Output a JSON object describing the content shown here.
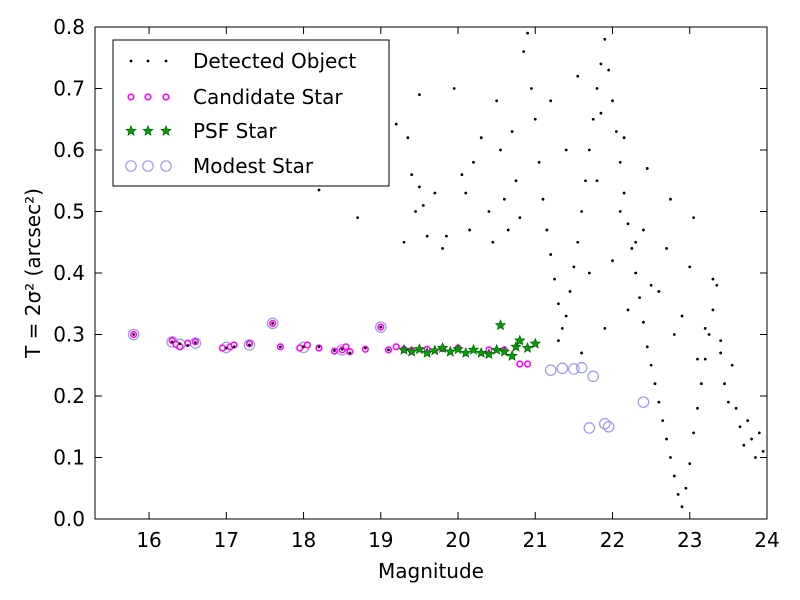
{
  "chart_data": {
    "type": "scatter",
    "xlabel": "Magnitude",
    "ylabel": "T = 2σ² (arcsec²)",
    "xlim": [
      15.3,
      24.0
    ],
    "ylim": [
      0.0,
      0.8
    ],
    "x_ticks": [
      "16",
      "17",
      "18",
      "19",
      "20",
      "21",
      "22",
      "23",
      "24"
    ],
    "y_ticks": [
      "0.0",
      "0.1",
      "0.2",
      "0.3",
      "0.4",
      "0.5",
      "0.6",
      "0.7",
      "0.8"
    ],
    "grid": false,
    "legend_position": "top-left",
    "series": [
      {
        "name": "Detected Object",
        "marker": "dot",
        "color": "#000000",
        "points": [
          [
            15.8,
            0.3
          ],
          [
            16.3,
            0.288
          ],
          [
            16.4,
            0.285
          ],
          [
            16.5,
            0.282
          ],
          [
            16.6,
            0.287
          ],
          [
            17.0,
            0.278
          ],
          [
            17.1,
            0.28
          ],
          [
            17.3,
            0.283
          ],
          [
            17.6,
            0.318
          ],
          [
            17.7,
            0.28
          ],
          [
            18.0,
            0.28
          ],
          [
            18.2,
            0.28
          ],
          [
            18.4,
            0.274
          ],
          [
            18.5,
            0.276
          ],
          [
            18.6,
            0.27
          ],
          [
            18.8,
            0.278
          ],
          [
            19.0,
            0.312
          ],
          [
            19.1,
            0.275
          ],
          [
            19.3,
            0.276
          ],
          [
            19.4,
            0.274
          ],
          [
            18.2,
            0.535
          ],
          [
            18.7,
            0.49
          ],
          [
            19.2,
            0.642
          ],
          [
            19.35,
            0.62
          ],
          [
            19.5,
            0.69
          ],
          [
            19.6,
            0.46
          ],
          [
            19.7,
            0.53
          ],
          [
            19.8,
            0.44
          ],
          [
            19.85,
            0.46
          ],
          [
            19.95,
            0.7
          ],
          [
            19.5,
            0.54
          ],
          [
            19.55,
            0.51
          ],
          [
            19.45,
            0.5
          ],
          [
            19.4,
            0.56
          ],
          [
            19.3,
            0.45
          ],
          [
            20.05,
            0.56
          ],
          [
            20.1,
            0.53
          ],
          [
            20.15,
            0.47
          ],
          [
            20.2,
            0.58
          ],
          [
            20.3,
            0.62
          ],
          [
            20.4,
            0.5
          ],
          [
            20.45,
            0.45
          ],
          [
            20.5,
            0.68
          ],
          [
            20.55,
            0.6
          ],
          [
            20.6,
            0.52
          ],
          [
            20.65,
            0.47
          ],
          [
            20.7,
            0.63
          ],
          [
            20.75,
            0.55
          ],
          [
            20.8,
            0.49
          ],
          [
            20.85,
            0.76
          ],
          [
            20.9,
            0.79
          ],
          [
            20.95,
            0.7
          ],
          [
            21.0,
            0.65
          ],
          [
            21.05,
            0.58
          ],
          [
            21.1,
            0.52
          ],
          [
            21.15,
            0.47
          ],
          [
            21.2,
            0.43
          ],
          [
            21.25,
            0.39
          ],
          [
            21.3,
            0.35
          ],
          [
            21.35,
            0.31
          ],
          [
            21.4,
            0.33
          ],
          [
            21.45,
            0.37
          ],
          [
            21.5,
            0.41
          ],
          [
            21.55,
            0.45
          ],
          [
            21.6,
            0.5
          ],
          [
            21.65,
            0.55
          ],
          [
            21.7,
            0.6
          ],
          [
            21.75,
            0.65
          ],
          [
            21.8,
            0.7
          ],
          [
            21.85,
            0.74
          ],
          [
            21.9,
            0.78
          ],
          [
            21.95,
            0.73
          ],
          [
            22.0,
            0.68
          ],
          [
            22.05,
            0.63
          ],
          [
            22.1,
            0.58
          ],
          [
            22.15,
            0.53
          ],
          [
            22.2,
            0.48
          ],
          [
            22.25,
            0.44
          ],
          [
            22.3,
            0.4
          ],
          [
            22.35,
            0.36
          ],
          [
            22.4,
            0.32
          ],
          [
            22.45,
            0.28
          ],
          [
            22.5,
            0.25
          ],
          [
            22.55,
            0.22
          ],
          [
            22.6,
            0.19
          ],
          [
            22.65,
            0.16
          ],
          [
            22.7,
            0.13
          ],
          [
            22.75,
            0.1
          ],
          [
            22.8,
            0.07
          ],
          [
            22.85,
            0.04
          ],
          [
            22.9,
            0.02
          ],
          [
            22.95,
            0.05
          ],
          [
            23.0,
            0.09
          ],
          [
            23.05,
            0.14
          ],
          [
            23.1,
            0.18
          ],
          [
            23.15,
            0.22
          ],
          [
            23.2,
            0.26
          ],
          [
            23.25,
            0.3
          ],
          [
            23.3,
            0.34
          ],
          [
            23.35,
            0.38
          ],
          [
            23.4,
            0.27
          ],
          [
            23.45,
            0.22
          ],
          [
            23.5,
            0.19
          ],
          [
            23.55,
            0.25
          ],
          [
            23.6,
            0.18
          ],
          [
            23.65,
            0.15
          ],
          [
            23.7,
            0.12
          ],
          [
            23.75,
            0.16
          ],
          [
            23.8,
            0.13
          ],
          [
            23.85,
            0.1
          ],
          [
            23.9,
            0.14
          ],
          [
            23.95,
            0.11
          ],
          [
            21.3,
            0.29
          ],
          [
            21.6,
            0.27
          ],
          [
            21.9,
            0.31
          ],
          [
            22.2,
            0.34
          ],
          [
            22.5,
            0.38
          ],
          [
            22.8,
            0.3
          ],
          [
            23.1,
            0.26
          ],
          [
            23.4,
            0.29
          ],
          [
            21.7,
            0.4
          ],
          [
            22.0,
            0.42
          ],
          [
            22.3,
            0.45
          ],
          [
            22.6,
            0.37
          ],
          [
            22.9,
            0.33
          ],
          [
            23.2,
            0.31
          ],
          [
            21.4,
            0.6
          ],
          [
            21.8,
            0.55
          ],
          [
            22.1,
            0.5
          ],
          [
            22.4,
            0.47
          ],
          [
            22.7,
            0.44
          ],
          [
            23.0,
            0.41
          ],
          [
            23.3,
            0.39
          ],
          [
            21.2,
            0.68
          ],
          [
            21.55,
            0.72
          ],
          [
            21.85,
            0.66
          ],
          [
            22.15,
            0.62
          ],
          [
            22.45,
            0.57
          ],
          [
            22.75,
            0.52
          ],
          [
            23.05,
            0.49
          ]
        ]
      },
      {
        "name": "Candidate Star",
        "marker": "circle",
        "color": "#ff00ff",
        "points": [
          [
            15.8,
            0.3
          ],
          [
            16.3,
            0.29
          ],
          [
            16.35,
            0.284
          ],
          [
            16.4,
            0.28
          ],
          [
            16.5,
            0.286
          ],
          [
            16.6,
            0.288
          ],
          [
            16.95,
            0.278
          ],
          [
            17.05,
            0.28
          ],
          [
            17.1,
            0.283
          ],
          [
            17.3,
            0.285
          ],
          [
            17.6,
            0.318
          ],
          [
            17.7,
            0.28
          ],
          [
            17.95,
            0.278
          ],
          [
            18.05,
            0.283
          ],
          [
            18.2,
            0.278
          ],
          [
            18.4,
            0.273
          ],
          [
            18.5,
            0.275
          ],
          [
            18.55,
            0.28
          ],
          [
            18.6,
            0.272
          ],
          [
            18.8,
            0.276
          ],
          [
            19.0,
            0.312
          ],
          [
            19.1,
            0.275
          ],
          [
            19.2,
            0.28
          ],
          [
            19.3,
            0.276
          ],
          [
            19.4,
            0.274
          ],
          [
            19.6,
            0.276
          ],
          [
            19.8,
            0.277
          ],
          [
            20.0,
            0.278
          ],
          [
            20.4,
            0.275
          ],
          [
            20.6,
            0.275
          ],
          [
            20.8,
            0.252
          ],
          [
            20.9,
            0.252
          ]
        ]
      },
      {
        "name": "PSF Star",
        "marker": "star",
        "color": "#00a000",
        "points": [
          [
            19.3,
            0.275
          ],
          [
            19.4,
            0.272
          ],
          [
            19.5,
            0.276
          ],
          [
            19.6,
            0.27
          ],
          [
            19.7,
            0.274
          ],
          [
            19.8,
            0.278
          ],
          [
            19.9,
            0.272
          ],
          [
            20.0,
            0.276
          ],
          [
            20.1,
            0.27
          ],
          [
            20.2,
            0.275
          ],
          [
            20.3,
            0.27
          ],
          [
            20.4,
            0.268
          ],
          [
            20.5,
            0.275
          ],
          [
            20.55,
            0.315
          ],
          [
            20.6,
            0.272
          ],
          [
            20.7,
            0.265
          ],
          [
            20.75,
            0.28
          ],
          [
            20.8,
            0.29
          ],
          [
            20.9,
            0.278
          ],
          [
            21.0,
            0.285
          ]
        ]
      },
      {
        "name": "Modest Star",
        "marker": "ring",
        "color": "#9999ee",
        "points": [
          [
            15.8,
            0.3
          ],
          [
            16.3,
            0.288
          ],
          [
            16.4,
            0.284
          ],
          [
            16.6,
            0.286
          ],
          [
            17.0,
            0.279
          ],
          [
            17.3,
            0.283
          ],
          [
            17.6,
            0.318
          ],
          [
            18.0,
            0.279
          ],
          [
            18.5,
            0.275
          ],
          [
            19.0,
            0.312
          ],
          [
            21.2,
            0.242
          ],
          [
            21.35,
            0.245
          ],
          [
            21.5,
            0.244
          ],
          [
            21.6,
            0.246
          ],
          [
            21.75,
            0.232
          ],
          [
            21.7,
            0.148
          ],
          [
            21.9,
            0.155
          ],
          [
            21.95,
            0.15
          ],
          [
            22.4,
            0.19
          ]
        ]
      }
    ]
  }
}
